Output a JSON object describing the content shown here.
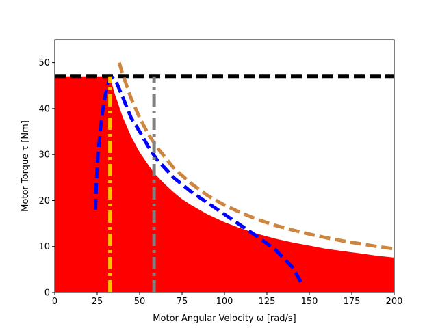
{
  "chart_data": {
    "type": "line",
    "title": "",
    "xlabel": "Motor Angular Velocity ω [rad/s]",
    "ylabel": "Motor Torque τ [Nm]",
    "xlim": [
      0,
      200
    ],
    "ylim": [
      0,
      55
    ],
    "x_ticks": [
      0,
      25,
      50,
      75,
      100,
      125,
      150,
      175,
      200
    ],
    "y_ticks": [
      0,
      10,
      20,
      30,
      40,
      50
    ],
    "grid": false,
    "legend": "none",
    "series": [
      {
        "role": "filled-area",
        "color": "#ff0000",
        "style": "area",
        "x": [
          0,
          32.5,
          35,
          40,
          45,
          50,
          55,
          58,
          60,
          65,
          70,
          75,
          80,
          90,
          100,
          110,
          120,
          130,
          140,
          150,
          160,
          170,
          180,
          190,
          200
        ],
        "y": [
          47,
          47,
          43.6,
          38.2,
          33.9,
          30.5,
          27.8,
          26.3,
          25.4,
          23.5,
          21.8,
          20.3,
          19.1,
          17.0,
          15.3,
          13.9,
          12.7,
          11.7,
          10.9,
          10.2,
          9.5,
          9.0,
          8.5,
          8.0,
          7.6
        ]
      },
      {
        "role": "torque-limit",
        "color": "#000000",
        "style": "dashed",
        "x": [
          0,
          200
        ],
        "y": [
          47,
          47
        ]
      },
      {
        "role": "power-limit-curve",
        "color": "#cd853f",
        "style": "dashed",
        "x": [
          38,
          40,
          45,
          50,
          55,
          60,
          70,
          80,
          90,
          100,
          110,
          120,
          130,
          140,
          150,
          160,
          170,
          180,
          190,
          200
        ],
        "y": [
          50,
          47.5,
          42.2,
          38.0,
          34.5,
          31.7,
          27.1,
          23.8,
          21.1,
          19.0,
          17.3,
          15.8,
          14.6,
          13.6,
          12.7,
          11.9,
          11.2,
          10.6,
          10.0,
          9.5
        ]
      },
      {
        "role": "speed-torque-curve",
        "color": "#0000ff",
        "style": "dashed",
        "x": [
          24,
          24.5,
          25.5,
          27,
          29,
          31,
          32.5,
          34,
          36,
          40,
          45,
          50,
          55,
          60,
          70,
          80,
          90,
          100,
          110,
          120,
          130,
          140,
          145
        ],
        "y": [
          18,
          24,
          30,
          36,
          41.5,
          45,
          46.5,
          46.8,
          46,
          42.5,
          38,
          35,
          31.8,
          29,
          25,
          22,
          19.5,
          17,
          14.5,
          12,
          9.3,
          5.5,
          2.3
        ]
      },
      {
        "role": "vertical-marker-1",
        "color": "#ffc000",
        "style": "dashdot",
        "x": [
          32.5,
          32.5
        ],
        "y": [
          0,
          47
        ]
      },
      {
        "role": "vertical-marker-2",
        "color": "#808080",
        "style": "dashdot",
        "x": [
          58.5,
          58.5
        ],
        "y": [
          0,
          47
        ]
      }
    ]
  }
}
